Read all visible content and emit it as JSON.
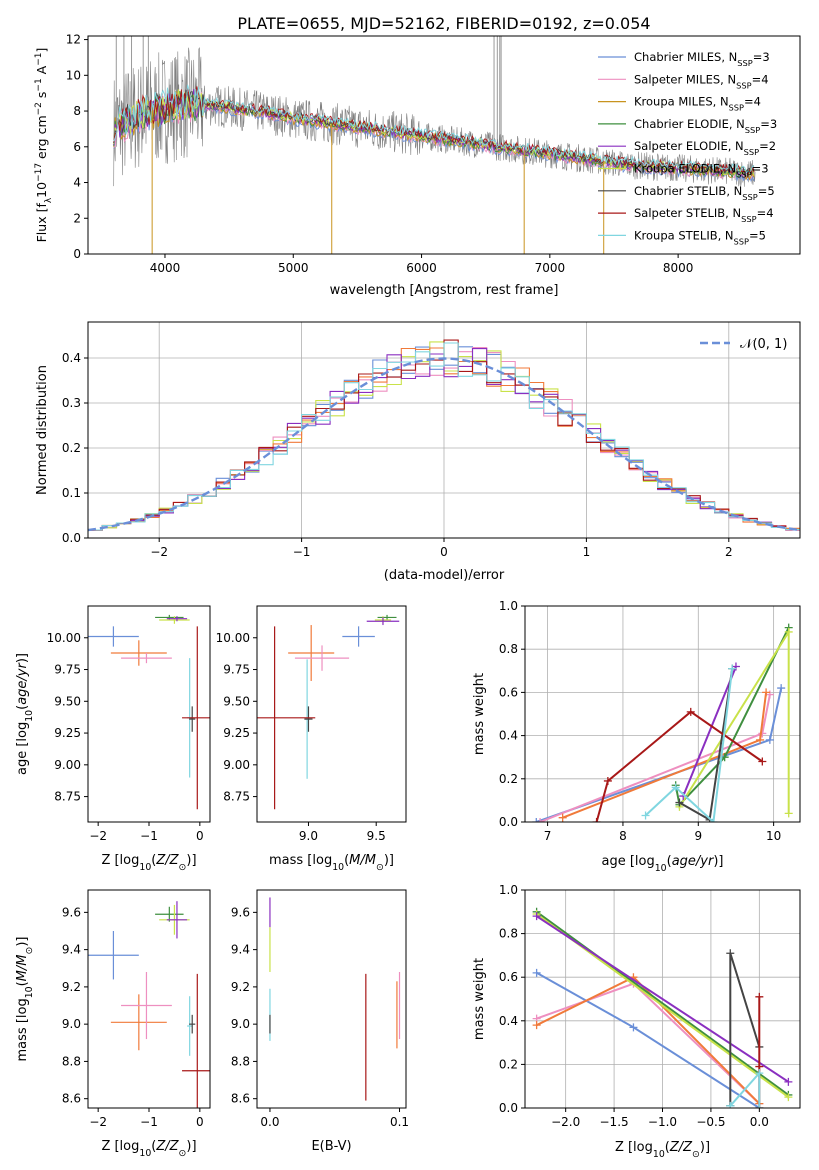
{
  "page": {
    "title": "PLATE=0655, MJD=52162, FIBERID=0192, z=0.054"
  },
  "colors": {
    "c0": "#6a8fd8",
    "c1": "#ee8fc0",
    "c2": "#c8931f",
    "c3": "#3f8f3f",
    "c4": "#8a2fc0",
    "c5": "#c9e24a",
    "c6": "#444444",
    "c7": "#a81818",
    "c8": "#80d6e0",
    "c9": "#f07a3a"
  },
  "chart_data": [
    {
      "id": "spectrum",
      "type": "line",
      "title": "PLATE=0655, MJD=52162, FIBERID=0192, z=0.054",
      "xlabel": "wavelength [Angstrom, rest frame]",
      "ylabel": "Flux [f$_\\lambda$10$^{-17}$ erg cm$^{-2}$ s$^{-1}$ A$^{-1}$]",
      "ylabel_parts": {
        "pre": "Flux [f",
        "sub1": "λ",
        "mid1": "10",
        "sup1": "−17",
        "mid2": " erg cm",
        "sup2": "−2",
        "mid3": " s",
        "sup3": "−1",
        "mid4": " A",
        "sup4": "−1",
        "post": "]"
      },
      "xlim": [
        3400,
        8950
      ],
      "ylim": [
        0,
        12.2
      ],
      "xticks": [
        4000,
        5000,
        6000,
        7000,
        8000
      ],
      "yticks": [
        0,
        2,
        4,
        6,
        8,
        10,
        12
      ],
      "legend_position": "top-right",
      "continuum_x": [
        3600,
        3750,
        3900,
        4050,
        4200,
        4400,
        4600,
        4800,
        5000,
        5200,
        5400,
        5600,
        5800,
        6000,
        6200,
        6400,
        6600,
        6800,
        7000,
        7200,
        7400,
        7600,
        7800,
        8000,
        8200,
        8400,
        8600
      ],
      "continuum_y": [
        7.0,
        7.6,
        8.0,
        8.3,
        8.4,
        8.3,
        8.1,
        7.9,
        7.6,
        7.4,
        7.2,
        7.0,
        6.8,
        6.6,
        6.4,
        6.2,
        6.0,
        5.8,
        5.6,
        5.4,
        5.2,
        5.0,
        4.9,
        4.8,
        4.7,
        4.6,
        4.5
      ],
      "series": [
        {
          "name_pre": "Chabrier MILES, N",
          "name_sub": "SSP",
          "name_post": "=3",
          "color": "c0"
        },
        {
          "name_pre": "Salpeter MILES, N",
          "name_sub": "SSP",
          "name_post": "=4",
          "color": "c1"
        },
        {
          "name_pre": "Kroupa MILES, N",
          "name_sub": "SSP",
          "name_post": "=4",
          "color": "c2"
        },
        {
          "name_pre": "Chabrier ELODIE, N",
          "name_sub": "SSP",
          "name_post": "=3",
          "color": "c3"
        },
        {
          "name_pre": "Salpeter ELODIE, N",
          "name_sub": "SSP",
          "name_post": "=2",
          "color": "c4"
        },
        {
          "name_pre": "Kroupa ELODIE, N",
          "name_sub": "SSP",
          "name_post": "=3",
          "color": "c5"
        },
        {
          "name_pre": "Chabrier STELIB, N",
          "name_sub": "SSP",
          "name_post": "=5",
          "color": "c6"
        },
        {
          "name_pre": "Salpeter STELIB, N",
          "name_sub": "SSP",
          "name_post": "=4",
          "color": "c7"
        },
        {
          "name_pre": "Kroupa STELIB, N",
          "name_sub": "SSP",
          "name_post": "=5",
          "color": "c8"
        }
      ]
    },
    {
      "id": "residuals",
      "type": "histogram",
      "xlabel": "(data-model)/error",
      "ylabel": "Normed distribution",
      "xlim": [
        -2.5,
        2.5
      ],
      "ylim": [
        0,
        0.48
      ],
      "xticks": [
        -2,
        -1,
        0,
        1,
        2
      ],
      "yticks": [
        0.0,
        0.1,
        0.2,
        0.3,
        0.4
      ],
      "grid": true,
      "legend_position": "top-right",
      "gaussian_label": "𝒩(0, 1)",
      "gaussian_color": "c0",
      "bin_width": 0.1,
      "series_colors": [
        "c0",
        "c1",
        "c5",
        "c9",
        "c4",
        "c7",
        "c8"
      ]
    },
    {
      "id": "age_vs_Z",
      "type": "errorbar",
      "xlabel": "Z [log$_{10}$(Z/Z$_\\odot$)]",
      "ylabel": "age  [log$_{10}$(age/yr)]",
      "xlim": [
        -2.2,
        0.2
      ],
      "ylim": [
        8.55,
        10.25
      ],
      "xticks": [
        -2,
        -1,
        0
      ],
      "yticks": [
        8.75,
        9.0,
        9.25,
        9.5,
        9.75,
        10.0
      ],
      "points": [
        {
          "x": -1.7,
          "y": 10.01,
          "xerr": 0.5,
          "yerr": 0.08,
          "color": "c0"
        },
        {
          "x": -1.2,
          "y": 9.88,
          "xerr": 0.55,
          "yerr": 0.1,
          "color": "c9"
        },
        {
          "x": -1.05,
          "y": 9.84,
          "xerr": 0.5,
          "yerr": 0.04,
          "color": "c1"
        },
        {
          "x": -0.6,
          "y": 10.16,
          "xerr": 0.28,
          "yerr": 0.02,
          "color": "c3"
        },
        {
          "x": -0.5,
          "y": 10.14,
          "xerr": 0.3,
          "yerr": 0.03,
          "color": "c5"
        },
        {
          "x": -0.45,
          "y": 10.15,
          "xerr": 0.2,
          "yerr": 0.02,
          "color": "c4"
        },
        {
          "x": -0.2,
          "y": 9.37,
          "xerr": 0.05,
          "yerr": 0.47,
          "color": "c8"
        },
        {
          "x": -0.15,
          "y": 9.36,
          "xerr": 0.06,
          "yerr": 0.1,
          "color": "c6"
        },
        {
          "x": -0.05,
          "y": 9.37,
          "xerr": 0.3,
          "yerr": 0.72,
          "color": "c7"
        }
      ]
    },
    {
      "id": "age_vs_mass",
      "type": "errorbar",
      "xlabel": "mass [log$_{10}$(M/M$_\\odot$)]",
      "xlim": [
        8.62,
        9.72
      ],
      "ylim": [
        8.55,
        10.25
      ],
      "xticks": [
        9.0,
        9.5
      ],
      "yticks": [
        8.75,
        9.0,
        9.25,
        9.5,
        9.75,
        10.0
      ],
      "points": [
        {
          "x": 9.37,
          "y": 10.01,
          "xerr": 0.12,
          "yerr": 0.08,
          "color": "c0"
        },
        {
          "x": 9.02,
          "y": 9.88,
          "xerr": 0.17,
          "yerr": 0.22,
          "color": "c9"
        },
        {
          "x": 9.1,
          "y": 9.84,
          "xerr": 0.2,
          "yerr": 0.1,
          "color": "c1"
        },
        {
          "x": 9.58,
          "y": 10.16,
          "xerr": 0.07,
          "yerr": 0.02,
          "color": "c3"
        },
        {
          "x": 9.55,
          "y": 10.14,
          "xerr": 0.06,
          "yerr": 0.03,
          "color": "c5"
        },
        {
          "x": 9.55,
          "y": 10.13,
          "xerr": 0.12,
          "yerr": 0.03,
          "color": "c4"
        },
        {
          "x": 8.99,
          "y": 9.36,
          "xerr": 0.02,
          "yerr": 0.47,
          "color": "c8"
        },
        {
          "x": 9.0,
          "y": 9.36,
          "xerr": 0.03,
          "yerr": 0.1,
          "color": "c6"
        },
        {
          "x": 8.75,
          "y": 9.37,
          "xerr": 0.3,
          "yerr": 0.72,
          "color": "c7"
        }
      ]
    },
    {
      "id": "weight_vs_age",
      "type": "line",
      "xlabel": "age  [log$_{10}$(age/yr)]",
      "ylabel": "mass weight",
      "xlim": [
        6.7,
        10.35
      ],
      "ylim": [
        0,
        1.0
      ],
      "xticks": [
        7,
        8,
        9,
        10
      ],
      "yticks": [
        0.0,
        0.2,
        0.4,
        0.6,
        0.8,
        1.0
      ],
      "grid": true,
      "series": [
        {
          "color": "c0",
          "x": [
            6.85,
            9.95,
            10.1
          ],
          "y": [
            0.0,
            0.38,
            0.62
          ]
        },
        {
          "color": "c1",
          "x": [
            6.9,
            9.85,
            9.95
          ],
          "y": [
            0.0,
            0.41,
            0.59
          ]
        },
        {
          "color": "c9",
          "x": [
            7.2,
            9.82,
            9.9
          ],
          "y": [
            0.02,
            0.38,
            0.6
          ]
        },
        {
          "color": "c3",
          "x": [
            8.7,
            8.75,
            9.35,
            10.2
          ],
          "y": [
            0.17,
            0.08,
            0.3,
            0.9
          ]
        },
        {
          "color": "c5",
          "x": [
            8.75,
            10.2,
            10.2
          ],
          "y": [
            0.07,
            0.88,
            0.04
          ]
        },
        {
          "color": "c4",
          "x": [
            8.8,
            9.5
          ],
          "y": [
            0.12,
            0.72
          ]
        },
        {
          "color": "c6",
          "x": [
            8.75,
            9.15,
            9.45
          ],
          "y": [
            0.09,
            0.01,
            0.71
          ]
        },
        {
          "color": "c7",
          "x": [
            7.65,
            7.8,
            8.9,
            9.85
          ],
          "y": [
            0.0,
            0.19,
            0.51,
            0.28
          ]
        },
        {
          "color": "c8",
          "x": [
            8.3,
            8.7,
            9.2,
            9.45
          ],
          "y": [
            0.03,
            0.16,
            0.0,
            0.71
          ]
        }
      ]
    },
    {
      "id": "mass_vs_Z",
      "type": "errorbar",
      "xlabel": "Z [log$_{10}$(Z/Z$_\\odot$)]",
      "ylabel": "mass [log$_{10}$(M/M$_\\odot$)]",
      "xlim": [
        -2.2,
        0.2
      ],
      "ylim": [
        8.55,
        9.72
      ],
      "xticks": [
        -2,
        -1,
        0
      ],
      "yticks": [
        8.6,
        8.8,
        9.0,
        9.2,
        9.4,
        9.6
      ],
      "points": [
        {
          "x": -1.7,
          "y": 9.37,
          "xerr": 0.5,
          "yerr": 0.13,
          "color": "c0"
        },
        {
          "x": -1.2,
          "y": 9.01,
          "xerr": 0.55,
          "yerr": 0.15,
          "color": "c9"
        },
        {
          "x": -1.05,
          "y": 9.1,
          "xerr": 0.5,
          "yerr": 0.18,
          "color": "c1"
        },
        {
          "x": -0.6,
          "y": 9.59,
          "xerr": 0.28,
          "yerr": 0.04,
          "color": "c3"
        },
        {
          "x": -0.5,
          "y": 9.56,
          "xerr": 0.3,
          "yerr": 0.08,
          "color": "c5"
        },
        {
          "x": -0.45,
          "y": 9.56,
          "xerr": 0.2,
          "yerr": 0.1,
          "color": "c4"
        },
        {
          "x": -0.2,
          "y": 8.99,
          "xerr": 0.05,
          "yerr": 0.16,
          "color": "c8"
        },
        {
          "x": -0.15,
          "y": 9.0,
          "xerr": 0.06,
          "yerr": 0.05,
          "color": "c6"
        },
        {
          "x": -0.05,
          "y": 8.75,
          "xerr": 0.3,
          "yerr": 0.52,
          "color": "c7"
        }
      ]
    },
    {
      "id": "mass_vs_ebv",
      "type": "errorbar",
      "xlabel": "E(B-V)",
      "xlim": [
        -0.01,
        0.105
      ],
      "ylim": [
        8.55,
        9.72
      ],
      "xticks": [
        0.0,
        0.1
      ],
      "yticks": [
        8.6,
        8.8,
        9.0,
        9.2,
        9.4,
        9.6
      ],
      "points": [
        {
          "x": 0.0,
          "y": 9.6,
          "xerr": 0,
          "yerr": 0.08,
          "color": "c4"
        },
        {
          "x": 0.0,
          "y": 9.4,
          "xerr": 0,
          "yerr": 0.12,
          "color": "c5"
        },
        {
          "x": 0.0,
          "y": 9.05,
          "xerr": 0,
          "yerr": 0.14,
          "color": "c8"
        },
        {
          "x": 0.0,
          "y": 9.0,
          "xerr": 0,
          "yerr": 0.05,
          "color": "c6"
        },
        {
          "x": 0.074,
          "y": 8.93,
          "xerr": 0,
          "yerr": 0.34,
          "color": "c7"
        },
        {
          "x": 0.098,
          "y": 9.05,
          "xerr": 0,
          "yerr": 0.18,
          "color": "c9"
        },
        {
          "x": 0.1,
          "y": 9.1,
          "xerr": 0,
          "yerr": 0.18,
          "color": "c1"
        }
      ]
    },
    {
      "id": "weight_vs_Z",
      "type": "line",
      "xlabel": "Z [log$_{10}$(Z/Z$_\\odot$)]",
      "ylabel": "mass weight",
      "xlim": [
        -2.42,
        0.42
      ],
      "ylim": [
        0,
        1.0
      ],
      "xticks": [
        -2.0,
        -1.5,
        -1.0,
        -0.5,
        0.0
      ],
      "yticks": [
        0.0,
        0.2,
        0.4,
        0.6,
        0.8,
        1.0
      ],
      "grid": true,
      "series": [
        {
          "color": "c0",
          "x": [
            -2.3,
            -1.3,
            0.0
          ],
          "y": [
            0.62,
            0.37,
            0.0
          ]
        },
        {
          "color": "c1",
          "x": [
            -2.3,
            -1.3,
            0.0
          ],
          "y": [
            0.41,
            0.57,
            0.02
          ]
        },
        {
          "color": "c9",
          "x": [
            -2.3,
            -1.3,
            0.0
          ],
          "y": [
            0.38,
            0.6,
            0.02
          ]
        },
        {
          "color": "c3",
          "x": [
            -2.3,
            0.3
          ],
          "y": [
            0.9,
            0.06
          ]
        },
        {
          "color": "c5",
          "x": [
            -2.3,
            0.3
          ],
          "y": [
            0.89,
            0.05
          ]
        },
        {
          "color": "c4",
          "x": [
            -2.3,
            0.3
          ],
          "y": [
            0.88,
            0.12
          ]
        },
        {
          "color": "c6",
          "x": [
            -0.3,
            -0.3,
            0.0
          ],
          "y": [
            0.01,
            0.71,
            0.28
          ]
        },
        {
          "color": "c7",
          "x": [
            0.0,
            0.0,
            0.0
          ],
          "y": [
            0.51,
            0.19,
            0.0
          ]
        },
        {
          "color": "c8",
          "x": [
            -0.3,
            0.0,
            0.0
          ],
          "y": [
            0.01,
            0.16,
            0.0
          ]
        }
      ]
    }
  ]
}
